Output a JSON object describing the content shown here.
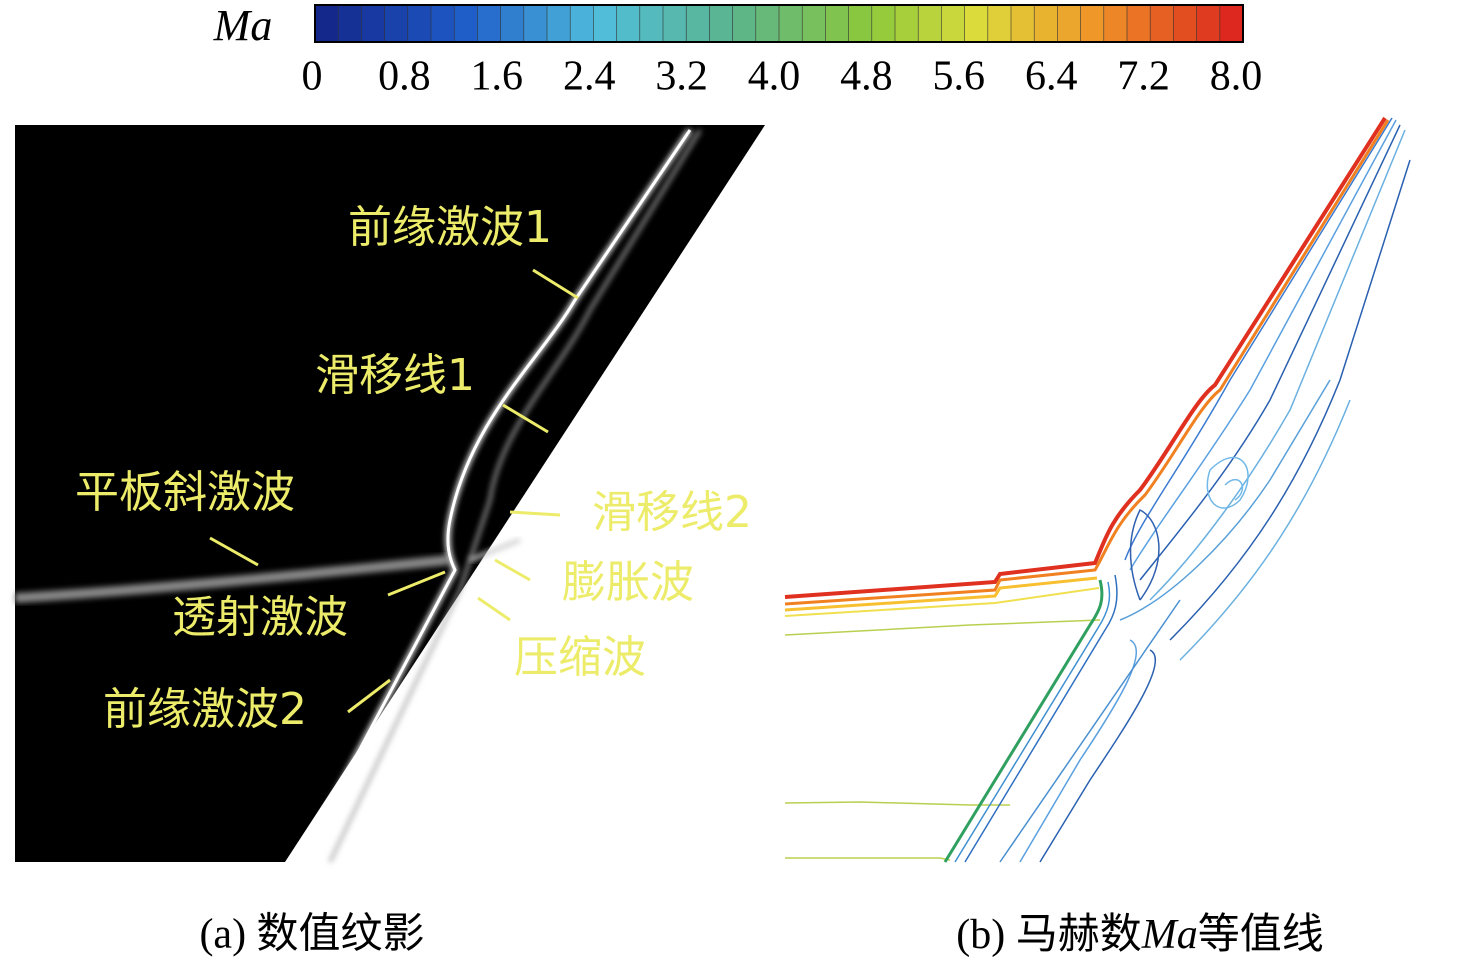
{
  "colorbar": {
    "label": "Ma",
    "tick_labels": [
      "0",
      "0.8",
      "1.6",
      "2.4",
      "3.2",
      "4.0",
      "4.8",
      "5.6",
      "6.4",
      "7.2",
      "8.0"
    ]
  },
  "panel_a": {
    "caption": "(a) 数值纹影",
    "annotations": [
      "前缘激波1",
      "滑移线1",
      "平板斜激波",
      "滑移线2",
      "膨胀波",
      "透射激波",
      "压缩波",
      "前缘激波2"
    ]
  },
  "panel_b": {
    "caption_prefix": "(b) 马赫数",
    "caption_symbol": "Ma",
    "caption_suffix": "等值线"
  }
}
